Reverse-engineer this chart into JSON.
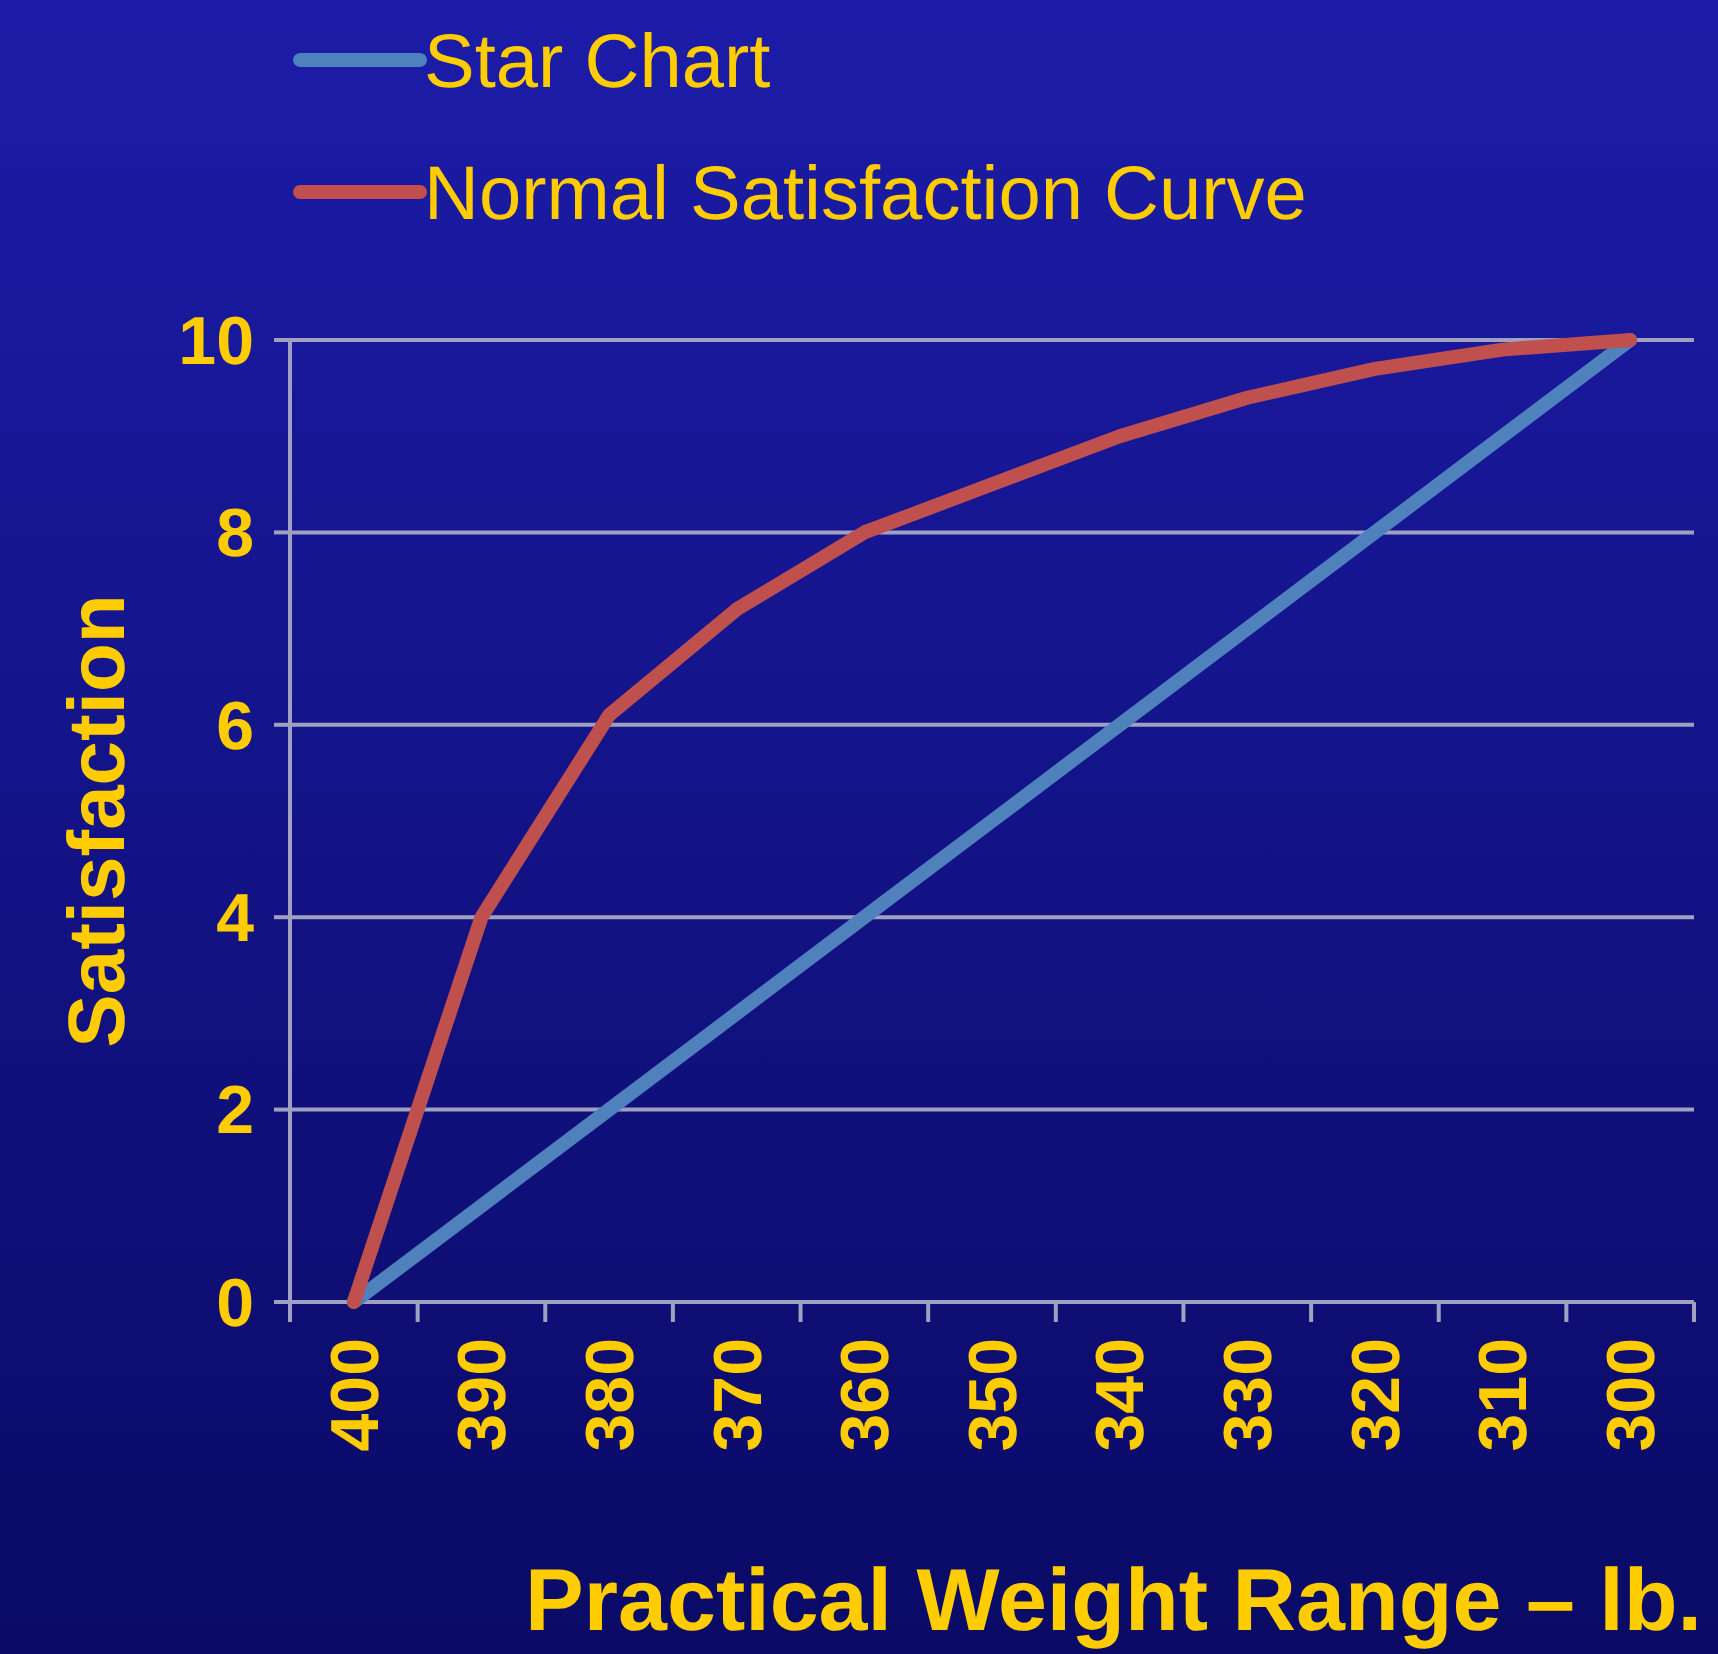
{
  "chart_data": {
    "type": "line",
    "xlabel": "Practical Weight Range – lb.",
    "ylabel": "Satisfaction",
    "categories": [
      "400",
      "390",
      "380",
      "370",
      "360",
      "350",
      "340",
      "330",
      "320",
      "310",
      "300"
    ],
    "series": [
      {
        "name": "Star Chart",
        "color": "#4f81bd",
        "values": [
          0,
          1,
          2,
          3,
          4,
          5,
          6,
          7,
          8,
          9,
          10
        ]
      },
      {
        "name": "Normal Satisfaction Curve",
        "color": "#c0504d",
        "values": [
          0,
          4,
          6.1,
          7.2,
          8,
          8.5,
          9,
          9.4,
          9.7,
          9.9,
          10
        ]
      }
    ],
    "ylim": [
      0,
      10
    ],
    "yticks": [
      0,
      2,
      4,
      6,
      8,
      10
    ],
    "grid": "y",
    "legend": "top left",
    "marker": "none",
    "line_style": "solid"
  }
}
